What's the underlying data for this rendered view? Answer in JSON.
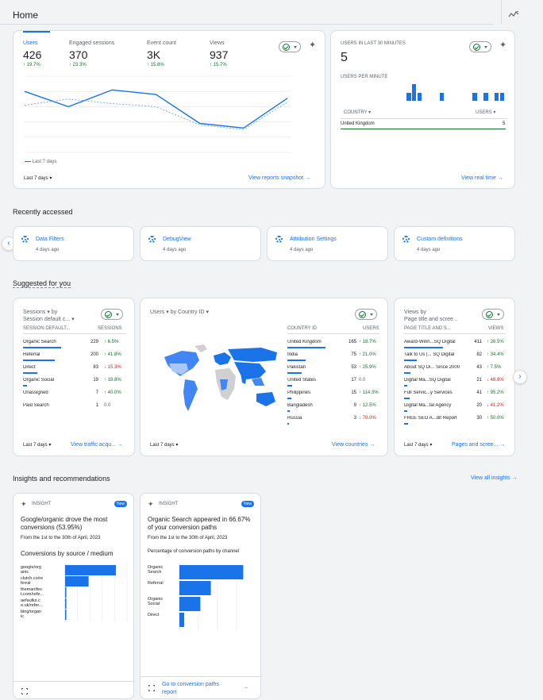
{
  "page": {
    "title": "Home"
  },
  "overview": {
    "metrics": [
      {
        "label": "Users",
        "value": "426",
        "change": "19.7%"
      },
      {
        "label": "Engaged sessions",
        "value": "370",
        "change": "23.3%"
      },
      {
        "label": "Event count",
        "value": "3K",
        "change": "15.8%"
      },
      {
        "label": "Views",
        "value": "937",
        "change": "15.7%"
      }
    ],
    "x_labels": [
      "16\nMay",
      "17",
      "18",
      "19",
      "20",
      "21",
      "22"
    ],
    "x_ticks": [
      "16",
      "17",
      "18",
      "19",
      "20",
      "21",
      "22"
    ],
    "x_month": "May",
    "y_ticks": [
      "100",
      "80",
      "60",
      "40",
      "20",
      "0"
    ],
    "legend": "Last 7 days",
    "date_range": "Last 7 days",
    "link": "View reports snapshot"
  },
  "chart_data": {
    "type": "line",
    "x": [
      "16",
      "17",
      "18",
      "19",
      "20",
      "21",
      "22"
    ],
    "ylim": [
      0,
      100
    ],
    "series": [
      {
        "name": "Last 7 days",
        "values": [
          80,
          60,
          82,
          76,
          38,
          32,
          71
        ],
        "style": "solid"
      },
      {
        "name": "",
        "values": [
          62,
          70,
          64,
          60,
          36,
          30,
          66
        ],
        "style": "dashed"
      }
    ]
  },
  "realtime": {
    "title": "USERS IN LAST 30 MINUTES",
    "value": "5",
    "sub_title": "USERS PER MINUTE",
    "bars": [
      0,
      0,
      0,
      0,
      0,
      0,
      0,
      0,
      0,
      0,
      0,
      0,
      1,
      2,
      1,
      0,
      0,
      0,
      1,
      0,
      0,
      0,
      0,
      0,
      1,
      0,
      1,
      0,
      1,
      1
    ],
    "col_country": "COUNTRY",
    "col_users": "USERS",
    "rows": [
      {
        "country": "United Kingdom",
        "users": "5"
      }
    ],
    "link": "View real time"
  },
  "recent": {
    "title": "Recently accessed",
    "items": [
      {
        "label": "Data Filters",
        "time": "4 days ago"
      },
      {
        "label": "DebugView",
        "time": "4 days ago"
      },
      {
        "label": "Attribution Settings",
        "time": "4 days ago"
      },
      {
        "label": "Custom definitions",
        "time": "4 days ago"
      }
    ]
  },
  "suggested": {
    "title": "Suggested for you",
    "sessions_card": {
      "title_a": "Sessions",
      "title_b": "by",
      "title_c": "Session default c...",
      "col1": "SESSION DEFAULT...",
      "col2": "SESSIONS",
      "rows": [
        {
          "label": "Organic Search",
          "value": "229",
          "change": "6.5%",
          "dir": "up",
          "bar": 0.95
        },
        {
          "label": "Referral",
          "value": "200",
          "change": "41.8%",
          "dir": "up",
          "bar": 0.8
        },
        {
          "label": "Direct",
          "value": "83",
          "change": "15.3%",
          "dir": "down",
          "bar": 0.35
        },
        {
          "label": "Organic Social",
          "value": "19",
          "change": "18.8%",
          "dir": "up",
          "bar": 0.1
        },
        {
          "label": "Unassigned",
          "value": "7",
          "change": "40.0%",
          "dir": "up",
          "bar": 0
        },
        {
          "label": "Paid Search",
          "value": "1",
          "change": "0.0",
          "dir": "none",
          "bar": 0
        }
      ],
      "date_range": "Last 7 days",
      "link": "View traffic acqu..."
    },
    "country_card": {
      "title_a": "Users",
      "title_b": "by Country ID",
      "col1": "COUNTRY ID",
      "col2": "USERS",
      "rows": [
        {
          "label": "United Kingdom",
          "value": "165",
          "change": "18.7%",
          "dir": "up",
          "bar": 0.95
        },
        {
          "label": "India",
          "value": "75",
          "change": "21.0%",
          "dir": "up",
          "bar": 0.45
        },
        {
          "label": "Pakistan",
          "value": "53",
          "change": "25.9%",
          "dir": "up",
          "bar": 0.35
        },
        {
          "label": "United States",
          "value": "17",
          "change": "0.0",
          "dir": "none",
          "bar": 0.12
        },
        {
          "label": "Philippines",
          "value": "15",
          "change": "114.3%",
          "dir": "up",
          "bar": 0.1
        },
        {
          "label": "Bangladesh",
          "value": "9",
          "change": "12.5%",
          "dir": "up",
          "bar": 0.06
        },
        {
          "label": "Russia",
          "value": "3",
          "change": "70.0%",
          "dir": "down",
          "bar": 0.03
        }
      ],
      "date_range": "Last 7 days",
      "link": "View countries"
    },
    "pages_card": {
      "title_a": "Views",
      "title_b": "by",
      "title_c": "Page title and scree...",
      "col1": "PAGE TITLE AND S...",
      "col2": "VIEWS",
      "rows": [
        {
          "label": "Award-Winn...SQ Digital",
          "value": "411",
          "change": "26.5%",
          "dir": "up",
          "bar": 0.95
        },
        {
          "label": "Talk to Us |... SQ Digital",
          "value": "82",
          "change": "34.4%",
          "dir": "up",
          "bar": 0.3
        },
        {
          "label": "About SQ Di... Since 2000",
          "value": "43",
          "change": "7.5%",
          "dir": "up",
          "bar": 0.15
        },
        {
          "label": "Digital Ma...SQ Digital",
          "value": "21",
          "change": "48.8%",
          "dir": "down",
          "bar": 0.08
        },
        {
          "label": "Full Servic...y Services",
          "value": "41",
          "change": "95.2%",
          "dir": "up",
          "bar": 0.14
        },
        {
          "label": "Digital Ma...tal Agency",
          "value": "20",
          "change": "41.2%",
          "dir": "down",
          "bar": 0.07
        },
        {
          "label": "FREE SEO A...dit Report",
          "value": "30",
          "change": "50.0%",
          "dir": "up",
          "bar": 0.1
        }
      ],
      "date_range": "Last 7 days",
      "link": "Pages and scree..."
    }
  },
  "insights": {
    "title": "Insights and recommendations",
    "view_all": "View all insights",
    "card1": {
      "tag": "INSIGHT",
      "badge": "New",
      "headline": "Google/organic drove the most conversions (53.95%)",
      "date": "From the 1st to the 30th of April, 2023",
      "chart_title": "Conversions by source / medium",
      "labels": [
        "google/org\nanic",
        "clutch.co/re\nferral",
        "themanifes\nt.com/refe...",
        "aefaulks.c\no.uk/refer...",
        "bing/organ\nic"
      ],
      "x_ticks": [
        "0",
        "10",
        "20",
        "30",
        "40",
        "50"
      ]
    },
    "card2": {
      "tag": "INSIGHT",
      "badge": "New",
      "headline": "Organic Search appeared in 66.67% of your conversion paths",
      "date": "From the 1st to the 30th of April, 2023",
      "chart_title": "Percentage of conversion paths by channel",
      "labels": [
        "Organic\nSearch",
        "Referral",
        "Organic\nSocial",
        "Direct"
      ],
      "x_ticks": [
        "0",
        "0.2",
        "0.4",
        "0.6"
      ],
      "footer_link": "Go to conversion paths report"
    }
  },
  "insight_charts": [
    {
      "type": "bar",
      "orientation": "horizontal",
      "title": "Conversions by source / medium",
      "categories": [
        "google/organic",
        "clutch.co/referral",
        "themanifest.com/refe...",
        "aefaulks.co.uk/refer...",
        "bing/organic"
      ],
      "values": [
        41,
        19,
        1,
        1,
        1
      ],
      "xlim": [
        0,
        50
      ]
    },
    {
      "type": "bar",
      "orientation": "horizontal",
      "title": "Percentage of conversion paths by channel",
      "categories": [
        "Organic Search",
        "Referral",
        "Organic Social",
        "Direct"
      ],
      "values": [
        0.67,
        0.33,
        0.22,
        0.05
      ],
      "xlim": [
        0,
        0.7
      ]
    }
  ]
}
